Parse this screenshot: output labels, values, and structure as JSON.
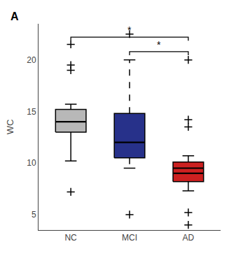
{
  "chart_data": {
    "type": "box",
    "panel_label": "A",
    "ylabel": "WC",
    "ylim": [
      3.5,
      23.5
    ],
    "yticks": [
      5,
      10,
      15,
      20
    ],
    "grid": false,
    "categories": [
      "NC",
      "MCI",
      "AD"
    ],
    "boxes": [
      {
        "q1": 13.0,
        "median": 14.0,
        "q3": 15.2,
        "whisker_lo": 10.2,
        "whisker_hi": 15.7,
        "outliers": [
          7.2,
          19.0,
          19.5,
          21.5
        ],
        "color": "#b8b8b8",
        "line_style": "solid"
      },
      {
        "q1": 10.5,
        "median": 12.0,
        "q3": 14.8,
        "whisker_lo": 9.5,
        "whisker_hi": 20.0,
        "outliers": [
          5.0,
          22.5
        ],
        "color": "#27318a",
        "line_style": "dashed"
      },
      {
        "q1": 8.2,
        "medians": [
          9.0,
          9.5
        ],
        "q3": 10.1,
        "whisker_lo": 7.3,
        "whisker_hi": 10.7,
        "outliers": [
          4.0,
          5.2,
          13.5,
          14.2,
          20.0
        ],
        "color": "#cc2020",
        "line_style": "solid"
      }
    ],
    "brackets": [
      {
        "from": "NC",
        "to": "AD",
        "y": 22.2,
        "label": "*"
      },
      {
        "from": "MCI",
        "to": "AD",
        "y": 20.8,
        "label": "*"
      }
    ]
  }
}
